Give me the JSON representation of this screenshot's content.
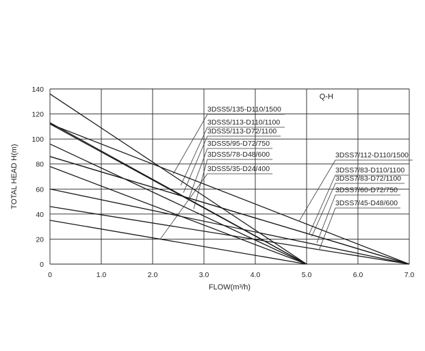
{
  "chart_data": {
    "type": "line",
    "title": "Q-H",
    "xlabel": "FLOW(m³/h)",
    "ylabel": "TOTAL HEAD H(m)",
    "xlim": [
      0,
      7
    ],
    "ylim": [
      0,
      140
    ],
    "x_ticks": [
      "0",
      "1.0",
      "2.0",
      "3.0",
      "4.0",
      "5.0",
      "6.0",
      "7.0"
    ],
    "y_ticks": [
      "0",
      "20",
      "40",
      "60",
      "80",
      "100",
      "120",
      "140"
    ],
    "grid": true,
    "legend": "none (labels with leader lines)",
    "series": [
      {
        "name": "3DSS5/135-D110/1500",
        "points": [
          [
            0,
            136
          ],
          [
            5,
            0
          ]
        ]
      },
      {
        "name": "3DSS5/113-D110/1100",
        "points": [
          [
            0,
            113
          ],
          [
            5,
            0
          ]
        ]
      },
      {
        "name": "3DSS5/113-D72/1100",
        "points": [
          [
            0,
            112
          ],
          [
            5,
            0
          ]
        ]
      },
      {
        "name": "3DSS5/95-D72/750",
        "points": [
          [
            0,
            96
          ],
          [
            5,
            0
          ]
        ]
      },
      {
        "name": "3DSS5/78-D48/600",
        "points": [
          [
            0,
            78
          ],
          [
            5,
            0
          ]
        ]
      },
      {
        "name": "3DSS5/35-D24/400",
        "points": [
          [
            0,
            35
          ],
          [
            5,
            0
          ]
        ]
      },
      {
        "name": "3DSS7/112-D110/1500",
        "points": [
          [
            0,
            112
          ],
          [
            7,
            0
          ]
        ]
      },
      {
        "name": "3DSS7/83-D110/1100",
        "points": [
          [
            0,
            86
          ],
          [
            7,
            0
          ]
        ]
      },
      {
        "name": "3DSS7/83-D72/1100",
        "points": [
          [
            0,
            86
          ],
          [
            7,
            0
          ]
        ]
      },
      {
        "name": "3DSS7/60-D72/750",
        "points": [
          [
            0,
            60
          ],
          [
            7,
            0
          ]
        ]
      },
      {
        "name": "3DSS7/45-D48/600",
        "points": [
          [
            0,
            46
          ],
          [
            7,
            0
          ]
        ]
      }
    ],
    "labels": [
      {
        "text": "3DSS5/135-D110/1500",
        "anchor": [
          2.4,
          72
        ]
      },
      {
        "text": "3DSS5/113-D110/1100",
        "anchor": [
          2.55,
          63
        ]
      },
      {
        "text": "3DSS5/113-D72/1100",
        "anchor": [
          2.6,
          57
        ]
      },
      {
        "text": "3DSS5/95-D72/750",
        "anchor": [
          2.7,
          52
        ]
      },
      {
        "text": "3DSS5/78-D48/600",
        "anchor": [
          2.8,
          44
        ]
      },
      {
        "text": "3DSS5/35-D24/400",
        "anchor": [
          2.15,
          20
        ]
      },
      {
        "text": "3DSS7/112-D110/1500",
        "anchor": [
          4.85,
          34
        ]
      },
      {
        "text": "3DSS7/83-D110/1100",
        "anchor": [
          5.05,
          24
        ]
      },
      {
        "text": "3DSS7/83-D72/1100",
        "anchor": [
          5.1,
          22
        ]
      },
      {
        "text": "3DSS7/60-D72/750",
        "anchor": [
          5.2,
          17
        ]
      },
      {
        "text": "3DSS7/45-D48/600",
        "anchor": [
          5.25,
          12
        ]
      }
    ]
  }
}
